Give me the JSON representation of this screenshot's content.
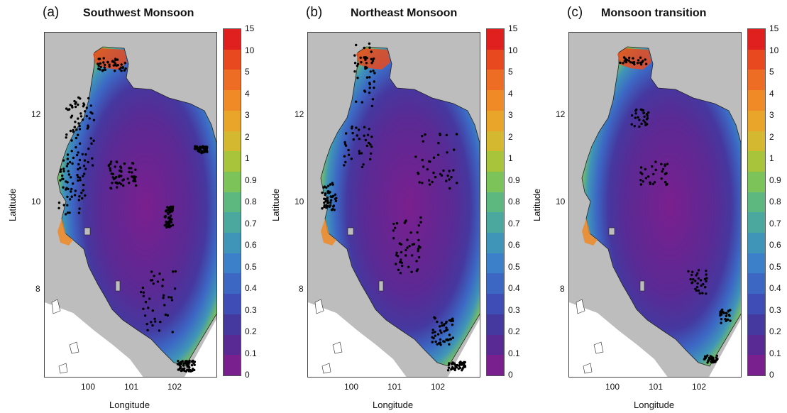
{
  "panels": [
    {
      "label": "(a)",
      "title": "Southwest Monsoon"
    },
    {
      "label": "(b)",
      "title": "Northeast Monsoon"
    },
    {
      "label": "(c)",
      "title": "Monsoon transition"
    }
  ],
  "axes": {
    "xlabel": "Longitude",
    "ylabel": "Latitude",
    "xticks": [
      "100",
      "101",
      "102"
    ],
    "yticks": [
      "12",
      "10",
      "8"
    ]
  },
  "colorbar": {
    "labels": [
      "15",
      "10",
      "5",
      "4",
      "3",
      "2",
      "1",
      "0.9",
      "0.8",
      "0.7",
      "0.6",
      "0.5",
      "0.4",
      "0.3",
      "0.2",
      "0.1",
      "0"
    ],
    "colors": [
      "#e0201e",
      "#e8491e",
      "#ed6d24",
      "#ef8a27",
      "#e9a52a",
      "#d4b930",
      "#a8c43a",
      "#7cc45a",
      "#5cb87f",
      "#4aa89e",
      "#3f95b8",
      "#3b80c8",
      "#3c68c4",
      "#3f4eb6",
      "#45389f",
      "#5a2a94",
      "#7a1f8e"
    ]
  },
  "colors": {
    "land": "#bdbdbd",
    "sea_low": "#7a1f8e",
    "points": "#000000"
  }
}
